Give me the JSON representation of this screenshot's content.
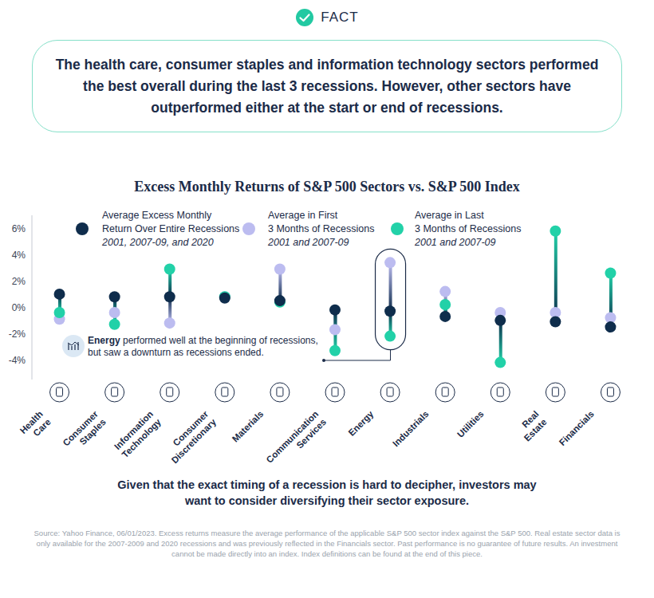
{
  "header": {
    "badge": "FACT",
    "text": "The health care, consumer staples and information technology sectors performed the best overall during the last 3 recessions. However, other sectors have outperformed either at the start or end of recessions."
  },
  "chart_data": {
    "type": "dumbbell",
    "title": "Excess Monthly Returns of S&P 500 Sectors vs. S&P 500 Index",
    "categories": [
      "Health Care",
      "Consumer Staples",
      "Information Technology",
      "Consumer Discretionary",
      "Materials",
      "Communication Services",
      "Energy",
      "Industrials",
      "Utilities",
      "Real Estate",
      "Financials"
    ],
    "series": [
      {
        "name": "Average Excess Monthly Return Over Entire Recessions",
        "subtitle": "2001, 2007-09, and 2020",
        "color": "#0f2d4c",
        "values": [
          1.0,
          0.8,
          0.8,
          0.7,
          0.5,
          -0.2,
          -0.3,
          -0.7,
          -1.0,
          -1.1,
          -1.5
        ]
      },
      {
        "name": "Average in First 3 Months of Recessions",
        "subtitle": "2001 and 2007-09",
        "color": "#bcbcf0",
        "values": [
          -0.9,
          -0.4,
          -1.2,
          0.8,
          2.9,
          -1.7,
          3.4,
          1.2,
          -0.4,
          -0.4,
          -0.8
        ]
      },
      {
        "name": "Average in Last 3 Months of Recessions",
        "subtitle": "2001 and 2007-09",
        "color": "#22d1a8",
        "values": [
          -0.4,
          -1.3,
          2.9,
          0.8,
          0.4,
          -3.3,
          -2.2,
          0.2,
          -4.2,
          5.8,
          2.6
        ]
      }
    ],
    "ylim": [
      -5.5,
      7
    ],
    "yticks": [
      {
        "value": -4,
        "label": "-4%"
      },
      {
        "value": -2,
        "label": "-2%"
      },
      {
        "value": 0,
        "label": "0%"
      },
      {
        "value": 2,
        "label": "2%"
      },
      {
        "value": 4,
        "label": "4%"
      },
      {
        "value": 6,
        "label": "6%"
      }
    ],
    "grid": false,
    "annotations": [
      {
        "x": "Energy",
        "text": "Energy performed well at the beginning of recessions, but saw a downturn as recessions ended."
      }
    ]
  },
  "footer": {
    "text": "Given that the exact timing of a recession is hard to decipher, investors may want to consider diversifying their sector exposure.",
    "source": "Source: Yahoo Finance, 06/01/2023. Excess returns measure the average performance of the applicable S&P 500 sector index against the S&P 500. Real estate sector data is only available for the 2007-2009 and 2020 recessions and was previously reflected in the Financials sector. Past performance is no guarantee of future results. An investment cannot be made directly into an index. Index definitions can be found at the end of this piece."
  }
}
